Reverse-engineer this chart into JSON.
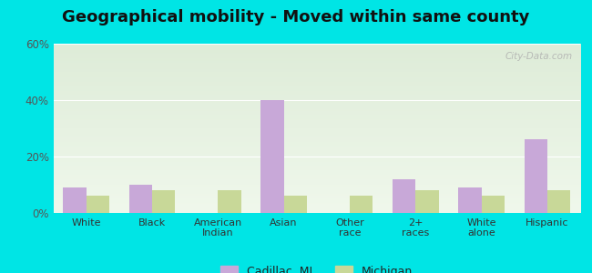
{
  "title": "Geographical mobility - Moved within same county",
  "categories": [
    "White",
    "Black",
    "American\nIndian",
    "Asian",
    "Other\nrace",
    "2+\nraces",
    "White\nalone",
    "Hispanic"
  ],
  "cadillac_values": [
    9,
    10,
    0,
    40,
    0,
    12,
    9,
    26
  ],
  "michigan_values": [
    6,
    8,
    8,
    6,
    6,
    8,
    6,
    8
  ],
  "cadillac_color": "#c8a8d8",
  "michigan_color": "#c8d898",
  "background_color_outer": "#00e5e5",
  "background_color_inner_top": "#deecd8",
  "background_color_inner_bottom": "#f0f8ec",
  "ylim": [
    0,
    60
  ],
  "yticks": [
    0,
    20,
    40,
    60
  ],
  "ytick_labels": [
    "0%",
    "20%",
    "40%",
    "60%"
  ],
  "legend_cadillac": "Cadillac, MI",
  "legend_michigan": "Michigan",
  "bar_width": 0.35,
  "title_fontsize": 13,
  "watermark": "City-Data.com"
}
